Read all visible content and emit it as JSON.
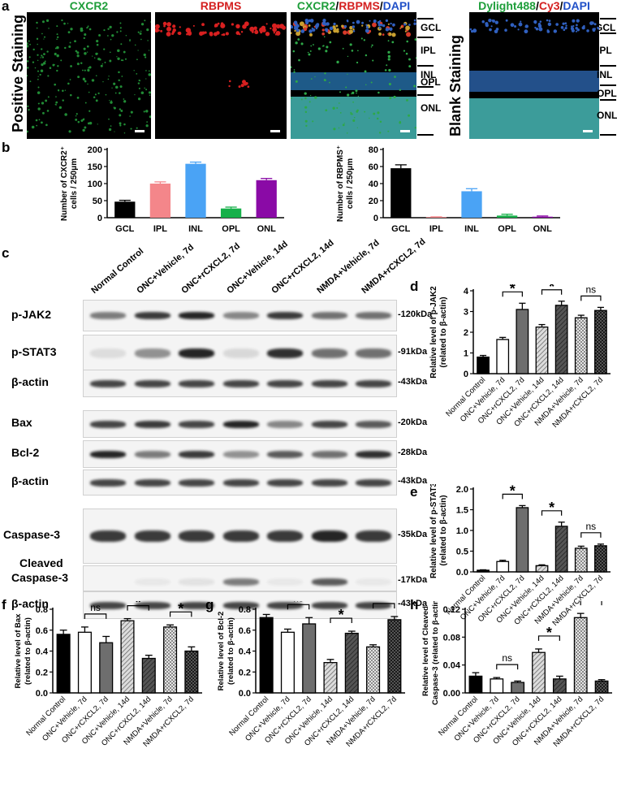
{
  "panels": {
    "a": "a",
    "b": "b",
    "c": "c",
    "d": "d",
    "e": "e",
    "f": "f",
    "g": "g",
    "h": "h"
  },
  "panel_a": {
    "row_label": "Positive Staining",
    "blank_label": "Blank Staining",
    "images": [
      {
        "title_parts": [
          {
            "text": "CXCR2",
            "color": "#1e9e3a"
          }
        ]
      },
      {
        "title_parts": [
          {
            "text": "RBPMS",
            "color": "#d42020"
          }
        ]
      },
      {
        "title_parts": [
          {
            "text": "CXCR2",
            "color": "#1e9e3a"
          },
          {
            "text": "/",
            "color": "#000000"
          },
          {
            "text": "RBPMS",
            "color": "#d42020"
          },
          {
            "text": "/",
            "color": "#000000"
          },
          {
            "text": "DAPI",
            "color": "#2050c8"
          }
        ]
      },
      {
        "title_parts": [
          {
            "text": "Dylight488",
            "color": "#1e9e3a"
          },
          {
            "text": "/",
            "color": "#000000"
          },
          {
            "text": "Cy3",
            "color": "#d42020"
          },
          {
            "text": "/",
            "color": "#000000"
          },
          {
            "text": "DAPI",
            "color": "#2050c8"
          }
        ]
      }
    ],
    "layers_left": [
      "GCL",
      "IPL",
      "INL",
      "OPL",
      "ONL"
    ],
    "layers_right": [
      "GCL",
      "IPL",
      "INL",
      "OPL",
      "ONL"
    ]
  },
  "panel_c": {
    "lanes": [
      "Normal Control",
      "ONC+Vehicle, 7d",
      "ONC+rCXCL2, 7d",
      "ONC+Vehicle, 14d",
      "ONC+rCXCL2, 14d",
      "NMDA+Vehicle, 7d",
      "NMDA+rCXCL2, 7d"
    ],
    "rows": [
      {
        "protein": "p-JAK2",
        "kda": "-120kDa"
      },
      {
        "protein": "p-STAT3",
        "kda": "-91kDa"
      },
      {
        "protein": "β-actin",
        "kda": "-43kDa"
      },
      {
        "protein": "Bax",
        "kda": "-20kDa"
      },
      {
        "protein": "Bcl-2",
        "kda": "-28kDa"
      },
      {
        "protein": "β-actin",
        "kda": "-43kDa"
      },
      {
        "protein": "Caspase-3",
        "kda": "-35kDa"
      },
      {
        "protein": "Cleaved Caspase-3",
        "kda": "-17kDa"
      },
      {
        "protein": "β-actin",
        "kda": "-43kDa"
      }
    ],
    "cleaved_line1": "Cleaved",
    "cleaved_line2": "Caspase-3"
  },
  "chart_data": [
    {
      "id": "b-left",
      "type": "bar",
      "categories": [
        "GCL",
        "IPL",
        "INL",
        "OPL",
        "ONL"
      ],
      "values": [
        47,
        100,
        158,
        27,
        110
      ],
      "errors": [
        4,
        5,
        5,
        4,
        5
      ],
      "colors": [
        "#000000",
        "#f4868a",
        "#4aa3f5",
        "#17b04a",
        "#8a0aa6"
      ],
      "ylabel_line1": "Number of CXCR2⁺",
      "ylabel_line2": "cells / 250μm",
      "ylim": [
        0,
        200
      ],
      "yticks": [
        0,
        50,
        100,
        150,
        200
      ]
    },
    {
      "id": "b-right",
      "type": "bar",
      "categories": [
        "GCL",
        "IPL",
        "INL",
        "OPL",
        "ONL"
      ],
      "values": [
        58,
        0.5,
        31,
        2.5,
        1.2
      ],
      "errors": [
        4,
        0.5,
        3,
        1.5,
        0.8
      ],
      "colors": [
        "#000000",
        "#f4868a",
        "#4aa3f5",
        "#17b04a",
        "#8a0aa6"
      ],
      "ylabel_line1": "Number of RBPMS⁺",
      "ylabel_line2": "cells / 250μm",
      "ylim": [
        0,
        80
      ],
      "yticks": [
        0,
        20,
        40,
        60,
        80
      ]
    },
    {
      "id": "d",
      "type": "bar",
      "categories": [
        "Normal Control",
        "ONC+Vehicle, 7d",
        "ONC+rCXCL2, 7d",
        "ONC+Vehicle, 14d",
        "ONC+rCXCL2, 14d",
        "NMDA+Vehicle, 7d",
        "NMDA+rCXCL2, 7d"
      ],
      "values": [
        0.8,
        1.65,
        3.1,
        2.25,
        3.3,
        2.7,
        3.05
      ],
      "errors": [
        0.08,
        0.1,
        0.3,
        0.12,
        0.2,
        0.12,
        0.15
      ],
      "ylabel_line1": "Relative level of p-JAK2",
      "ylabel_line2": "(related to β-actin)",
      "ylim": [
        0,
        4
      ],
      "yticks": [
        0,
        1,
        2,
        3,
        4
      ],
      "annotations": [
        {
          "pair": [
            1,
            2
          ],
          "label": "*"
        },
        {
          "pair": [
            3,
            4
          ],
          "label": "*"
        },
        {
          "pair": [
            5,
            6
          ],
          "label": "ns"
        }
      ]
    },
    {
      "id": "e",
      "type": "bar",
      "categories": [
        "Normal Control",
        "ONC+Vehicle, 7d",
        "ONC+rCXCL2, 7d",
        "ONC+Vehicle, 14d",
        "ONC+rCXCL2, 14d",
        "NMDA+Vehicle, 7d",
        "NMDA+rCXCL2, 7d"
      ],
      "values": [
        0.04,
        0.25,
        1.55,
        0.15,
        1.1,
        0.57,
        0.63
      ],
      "errors": [
        0.01,
        0.03,
        0.05,
        0.02,
        0.1,
        0.05,
        0.04
      ],
      "ylabel_line1": "Relative level of p-STAT3",
      "ylabel_line2": "(related to β-actin)",
      "ylim": [
        0,
        2.0
      ],
      "yticks": [
        0.0,
        0.5,
        1.0,
        1.5,
        2.0
      ],
      "annotations": [
        {
          "pair": [
            1,
            2
          ],
          "label": "*"
        },
        {
          "pair": [
            3,
            4
          ],
          "label": "*"
        },
        {
          "pair": [
            5,
            6
          ],
          "label": "ns"
        }
      ]
    },
    {
      "id": "f",
      "type": "bar",
      "categories": [
        "Normal Control",
        "ONC+Vehicle, 7d",
        "ONC+rCXCL2, 7d",
        "ONC+Vehicle, 14d",
        "ONC+rCXCL2, 14d",
        "NMDA+Vehicle, 7d",
        "NMDA+rCXCL2, 7d"
      ],
      "values": [
        0.56,
        0.58,
        0.48,
        0.69,
        0.33,
        0.63,
        0.4
      ],
      "errors": [
        0.04,
        0.05,
        0.06,
        0.02,
        0.03,
        0.02,
        0.04
      ],
      "ylabel_line1": "Relative level of Bax",
      "ylabel_line2": "(related to β-actin)",
      "ylim": [
        0,
        0.8
      ],
      "yticks": [
        0.0,
        0.2,
        0.4,
        0.6,
        0.8
      ],
      "annotations": [
        {
          "pair": [
            1,
            2
          ],
          "label": "ns"
        },
        {
          "pair": [
            3,
            4
          ],
          "label": "*"
        },
        {
          "pair": [
            5,
            6
          ],
          "label": "*"
        }
      ]
    },
    {
      "id": "g",
      "type": "bar",
      "categories": [
        "Normal Control",
        "ONC+Vehicle, 7d",
        "ONC+rCXCL2, 7d",
        "ONC+Vehicle, 14d",
        "ONC+rCXCL2, 14d",
        "NMDA+Vehicle, 7d",
        "NMDA+rCXCL2, 7d"
      ],
      "values": [
        0.72,
        0.58,
        0.66,
        0.29,
        0.57,
        0.44,
        0.7
      ],
      "errors": [
        0.03,
        0.03,
        0.06,
        0.03,
        0.02,
        0.02,
        0.03
      ],
      "ylabel_line1": "Relative level of Bcl-2",
      "ylabel_line2": "(related to β-actin)",
      "ylim": [
        0,
        0.8
      ],
      "yticks": [
        0.0,
        0.2,
        0.4,
        0.6,
        0.8
      ],
      "annotations": [
        {
          "pair": [
            1,
            2
          ],
          "label": "ns"
        },
        {
          "pair": [
            3,
            4
          ],
          "label": "*"
        },
        {
          "pair": [
            5,
            6
          ],
          "label": "*"
        }
      ]
    },
    {
      "id": "h",
      "type": "bar",
      "categories": [
        "Normal Control",
        "ONC+Vehicle, 7d",
        "ONC+rCXCL2, 7d",
        "ONC+Vehicle, 14d",
        "ONC+rCXCL2, 14d",
        "NMDA+Vehicle, 7d",
        "NMDA+rCXCL2, 7d"
      ],
      "values": [
        0.024,
        0.02,
        0.015,
        0.058,
        0.02,
        0.108,
        0.017
      ],
      "errors": [
        0.005,
        0.002,
        0.002,
        0.005,
        0.004,
        0.006,
        0.002
      ],
      "ylabel_line1": "Relative level of Cleaved",
      "ylabel_line2": "Caspase-3 (related to β-actin)",
      "ylim": [
        0,
        0.12
      ],
      "yticks": [
        0.0,
        0.04,
        0.08,
        0.12
      ],
      "annotations": [
        {
          "pair": [
            1,
            2
          ],
          "label": "ns"
        },
        {
          "pair": [
            3,
            4
          ],
          "label": "*"
        },
        {
          "pair": [
            5,
            6
          ],
          "label": "*"
        }
      ]
    }
  ]
}
